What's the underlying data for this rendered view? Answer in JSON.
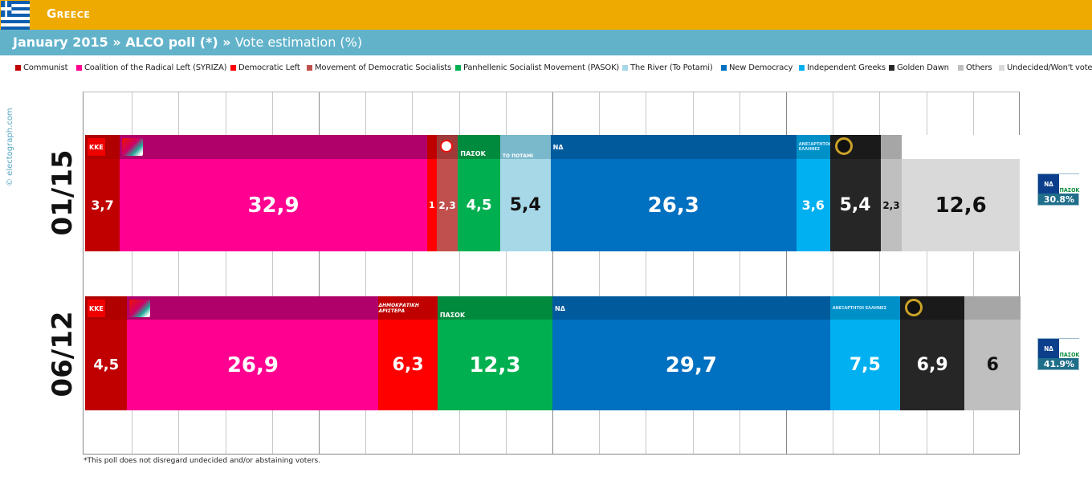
{
  "header": {
    "country": "Greece",
    "title_bold": "January 2015 » ALCO poll (*) »",
    "title_rest": " Vote estimation (%)"
  },
  "watermark": "© electograph.com",
  "footnote": "*This poll does not disregard undecided and/or abstaining voters.",
  "legend": [
    {
      "label": "Communist",
      "color": "#c00000"
    },
    {
      "label": "Coalition of the Radical Left (SYRIZA)",
      "color": "#ff0090"
    },
    {
      "label": "Democratic Left",
      "color": "#ff0000"
    },
    {
      "label": "Movement of Democratic Socialists",
      "color": "#c0504d"
    },
    {
      "label": "Panhellenic Socialist Movement (PASOK)",
      "color": "#00b050"
    },
    {
      "label": "The River (To Potami)",
      "color": "#a6d8e7"
    },
    {
      "label": "New Democracy",
      "color": "#0070c0"
    },
    {
      "label": "Independent Greeks",
      "color": "#00b0f0"
    },
    {
      "label": "Golden Dawn",
      "color": "#262626"
    },
    {
      "label": "Others",
      "color": "#bfbfbf"
    },
    {
      "label": "Undecided/Won't vote",
      "color": "#d9d9d9"
    }
  ],
  "logos": {
    "kke": "KKE",
    "pasok": "ΠΑΣΟΚ",
    "potami": "ΤΟ ΠΟΤΑΜΙ",
    "nd": "ΝΔ",
    "dimar": "ΔΗΜΟΚΡΑΤΙΚΗ ΑΡΙΣΤΕΡΑ",
    "anel": "ΑΝΕΞΑΡΤΗΤΟΙ ΕΛΛΗΝΕΣ"
  },
  "chart_data": {
    "type": "bar",
    "orientation": "horizontal",
    "stacked": true,
    "xlim": [
      0,
      100
    ],
    "grid": true,
    "rows": [
      {
        "label": "01/15",
        "coalition": {
          "parties": [
            "ΝΔ",
            "ΠΑΣΟΚ"
          ],
          "value": "30.8%"
        },
        "segments": [
          {
            "party": "Communist",
            "value": 3.7,
            "label": "3,7",
            "color": "#c00000",
            "dark": "#b00000",
            "logo": "kke"
          },
          {
            "party": "Coalition of the Radical Left (SYRIZA)",
            "value": 32.9,
            "label": "32,9",
            "color": "#ff0090",
            "dark": "#b0006a",
            "logo": "syriza"
          },
          {
            "party": "Democratic Left",
            "value": 1.0,
            "label": "1",
            "color": "#ff0000",
            "dark": "#c00000",
            "logo": ""
          },
          {
            "party": "Movement of Democratic Socialists",
            "value": 2.3,
            "label": "2,3",
            "color": "#c0504d",
            "dark": "#a03a38",
            "logo": "kidiso"
          },
          {
            "party": "Panhellenic Socialist Movement (PASOK)",
            "value": 4.5,
            "label": "4,5",
            "color": "#00b050",
            "dark": "#008a3e",
            "logo": "pasok"
          },
          {
            "party": "The River (To Potami)",
            "value": 5.4,
            "label": "5,4",
            "color": "#a6d8e7",
            "dark": "#7ab8cc",
            "logo": "potami"
          },
          {
            "party": "New Democracy",
            "value": 26.3,
            "label": "26,3",
            "color": "#0070c0",
            "dark": "#005a9c",
            "logo": "nd"
          },
          {
            "party": "Independent Greeks",
            "value": 3.6,
            "label": "3,6",
            "color": "#00b0f0",
            "dark": "#0090c8",
            "logo": "anel"
          },
          {
            "party": "Golden Dawn",
            "value": 5.4,
            "label": "5,4",
            "color": "#262626",
            "dark": "#1a1a1a",
            "logo": "xa"
          },
          {
            "party": "Others",
            "value": 2.3,
            "label": "2,3",
            "color": "#bfbfbf",
            "dark": "#a6a6a6",
            "logo": ""
          },
          {
            "party": "Undecided/Won't vote",
            "value": 12.6,
            "label": "12,6",
            "color": "#d9d9d9",
            "dark": "#ffffff",
            "logo": ""
          }
        ]
      },
      {
        "label": "06/12",
        "coalition": {
          "parties": [
            "ΝΔ",
            "ΠΑΣΟΚ"
          ],
          "value": "41.9%"
        },
        "segments": [
          {
            "party": "Communist",
            "value": 4.5,
            "label": "4,5",
            "color": "#c00000",
            "dark": "#b00000",
            "logo": "kke"
          },
          {
            "party": "Coalition of the Radical Left (SYRIZA)",
            "value": 26.9,
            "label": "26,9",
            "color": "#ff0090",
            "dark": "#b0006a",
            "logo": "syriza"
          },
          {
            "party": "Democratic Left",
            "value": 6.3,
            "label": "6,3",
            "color": "#ff0000",
            "dark": "#c00000",
            "logo": "dimar"
          },
          {
            "party": "Panhellenic Socialist Movement (PASOK)",
            "value": 12.3,
            "label": "12,3",
            "color": "#00b050",
            "dark": "#008a3e",
            "logo": "pasok"
          },
          {
            "party": "New Democracy",
            "value": 29.7,
            "label": "29,7",
            "color": "#0070c0",
            "dark": "#005a9c",
            "logo": "nd"
          },
          {
            "party": "Independent Greeks",
            "value": 7.5,
            "label": "7,5",
            "color": "#00b0f0",
            "dark": "#0090c8",
            "logo": "anel"
          },
          {
            "party": "Golden Dawn",
            "value": 6.9,
            "label": "6,9",
            "color": "#262626",
            "dark": "#1a1a1a",
            "logo": "xa"
          },
          {
            "party": "Others",
            "value": 6.0,
            "label": "6",
            "color": "#bfbfbf",
            "dark": "#a6a6a6",
            "logo": ""
          }
        ]
      }
    ]
  }
}
